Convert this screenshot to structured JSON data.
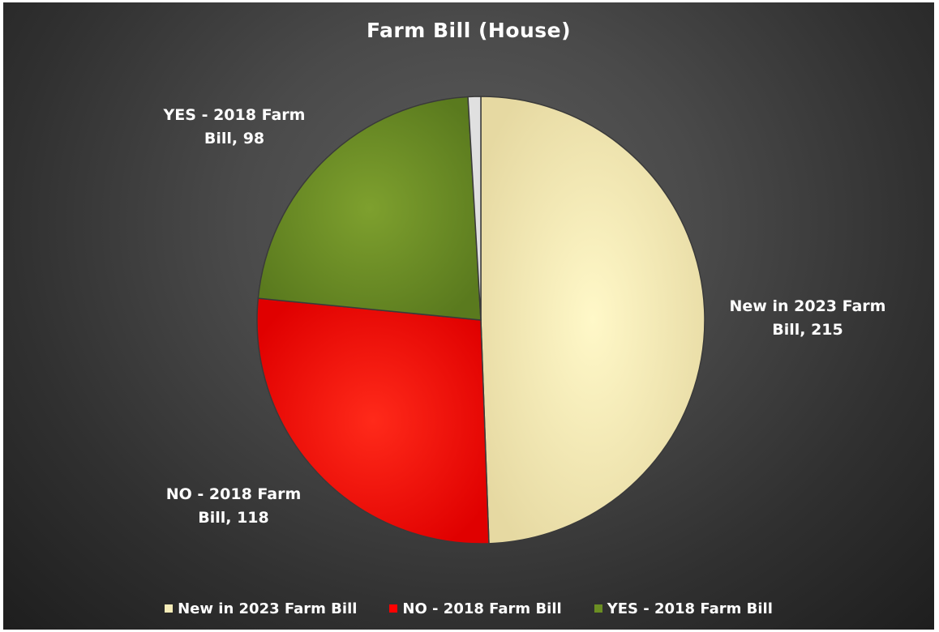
{
  "chart_data": {
    "type": "pie",
    "title": "Farm Bill (House)",
    "categories": [
      "New in 2023 Farm Bill",
      "NO - 2018 Farm Bill",
      "YES - 2018 Farm Bill"
    ],
    "values": [
      215,
      118,
      98
    ],
    "colors": [
      "#f5ecb8",
      "#ff0000",
      "#6b8e23"
    ],
    "label_lines": [
      [
        "New in 2023 Farm",
        "Bill, 215"
      ],
      [
        "NO - 2018 Farm",
        "Bill, 118"
      ],
      [
        "YES - 2018 Farm",
        "Bill, 98"
      ]
    ],
    "legend_position": "bottom",
    "small_unlabeled_slice": {
      "color": "#e0e0e0",
      "value": 4
    }
  }
}
